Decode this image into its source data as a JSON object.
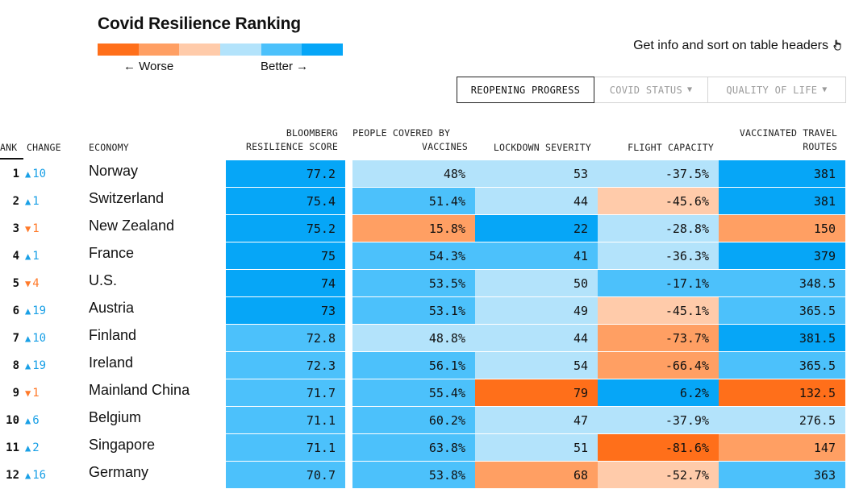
{
  "title": "Covid Resilience Ranking",
  "legend": {
    "worse": "← Worse",
    "better": "Better →",
    "scale_colors": [
      "#ff6f1a",
      "#ff9f63",
      "#ffcbaa",
      "#b3e3fb",
      "#4cc1fb",
      "#06a6f7"
    ]
  },
  "hint": {
    "text": "Get info and sort on table headers",
    "icon": "pointer-hand-icon"
  },
  "tabs": [
    {
      "label": "REOPENING PROGRESS",
      "active": true
    },
    {
      "label": "COVID STATUS",
      "active": false
    },
    {
      "label": "QUALITY OF LIFE",
      "active": false
    }
  ],
  "columns": {
    "rank": "ANK",
    "change": "CHANGE",
    "economy": "ECONOMY",
    "score_line1": "BLOOMBERG",
    "score_line2": "RESILIENCE SCORE",
    "vacc_line1": "PEOPLE COVERED BY",
    "vacc_line2": "VACCINES",
    "lockdown": "LOCKDOWN SEVERITY",
    "flight": "FLIGHT CAPACITY",
    "routes_line1": "VACCINATED TRAVEL",
    "routes_line2": "ROUTES"
  },
  "colors": {
    "dark_blue": "#06a6f7",
    "mid_blue": "#4cc1fb",
    "light_blue": "#b3e3fb",
    "light_orange": "#ffcbaa",
    "mid_orange": "#ff9f63",
    "dark_orange": "#ff6f1a",
    "up": "#1aa0e6",
    "down": "#ff7a2a"
  },
  "rows": [
    {
      "rank": "1",
      "dir": "up",
      "change": "10",
      "economy": "Norway",
      "score": "77.2",
      "score_c": "dark_blue",
      "vacc": "48%",
      "vacc_c": "light_blue",
      "lock": "53",
      "lock_c": "light_blue",
      "flight": "-37.5%",
      "flight_c": "light_blue",
      "routes": "381",
      "routes_c": "dark_blue"
    },
    {
      "rank": "2",
      "dir": "up",
      "change": "1",
      "economy": "Switzerland",
      "score": "75.4",
      "score_c": "dark_blue",
      "vacc": "51.4%",
      "vacc_c": "mid_blue",
      "lock": "44",
      "lock_c": "light_blue",
      "flight": "-45.6%",
      "flight_c": "light_orange",
      "routes": "381",
      "routes_c": "dark_blue"
    },
    {
      "rank": "3",
      "dir": "down",
      "change": "1",
      "economy": "New Zealand",
      "score": "75.2",
      "score_c": "dark_blue",
      "vacc": "15.8%",
      "vacc_c": "mid_orange",
      "lock": "22",
      "lock_c": "dark_blue",
      "flight": "-28.8%",
      "flight_c": "light_blue",
      "routes": "150",
      "routes_c": "mid_orange"
    },
    {
      "rank": "4",
      "dir": "up",
      "change": "1",
      "economy": "France",
      "score": "75",
      "score_c": "dark_blue",
      "vacc": "54.3%",
      "vacc_c": "mid_blue",
      "lock": "41",
      "lock_c": "mid_blue",
      "flight": "-36.3%",
      "flight_c": "light_blue",
      "routes": "379",
      "routes_c": "dark_blue"
    },
    {
      "rank": "5",
      "dir": "down",
      "change": "4",
      "economy": "U.S.",
      "score": "74",
      "score_c": "dark_blue",
      "vacc": "53.5%",
      "vacc_c": "mid_blue",
      "lock": "50",
      "lock_c": "light_blue",
      "flight": "-17.1%",
      "flight_c": "mid_blue",
      "routes": "348.5",
      "routes_c": "mid_blue"
    },
    {
      "rank": "6",
      "dir": "up",
      "change": "19",
      "economy": "Austria",
      "score": "73",
      "score_c": "dark_blue",
      "vacc": "53.1%",
      "vacc_c": "mid_blue",
      "lock": "49",
      "lock_c": "light_blue",
      "flight": "-45.1%",
      "flight_c": "light_orange",
      "routes": "365.5",
      "routes_c": "mid_blue"
    },
    {
      "rank": "7",
      "dir": "up",
      "change": "10",
      "economy": "Finland",
      "score": "72.8",
      "score_c": "mid_blue",
      "vacc": "48.8%",
      "vacc_c": "light_blue",
      "lock": "44",
      "lock_c": "light_blue",
      "flight": "-73.7%",
      "flight_c": "mid_orange",
      "routes": "381.5",
      "routes_c": "dark_blue"
    },
    {
      "rank": "8",
      "dir": "up",
      "change": "19",
      "economy": "Ireland",
      "score": "72.3",
      "score_c": "mid_blue",
      "vacc": "56.1%",
      "vacc_c": "mid_blue",
      "lock": "54",
      "lock_c": "light_blue",
      "flight": "-66.4%",
      "flight_c": "mid_orange",
      "routes": "365.5",
      "routes_c": "mid_blue"
    },
    {
      "rank": "9",
      "dir": "down",
      "change": "1",
      "economy": "Mainland China",
      "score": "71.7",
      "score_c": "mid_blue",
      "vacc": "55.4%",
      "vacc_c": "mid_blue",
      "lock": "79",
      "lock_c": "dark_orange",
      "flight": "6.2%",
      "flight_c": "dark_blue",
      "routes": "132.5",
      "routes_c": "dark_orange"
    },
    {
      "rank": "10",
      "dir": "up",
      "change": "6",
      "economy": "Belgium",
      "score": "71.1",
      "score_c": "mid_blue",
      "vacc": "60.2%",
      "vacc_c": "mid_blue",
      "lock": "47",
      "lock_c": "light_blue",
      "flight": "-37.9%",
      "flight_c": "light_blue",
      "routes": "276.5",
      "routes_c": "light_blue"
    },
    {
      "rank": "11",
      "dir": "up",
      "change": "2",
      "economy": "Singapore",
      "score": "71.1",
      "score_c": "mid_blue",
      "vacc": "63.8%",
      "vacc_c": "mid_blue",
      "lock": "51",
      "lock_c": "light_blue",
      "flight": "-81.6%",
      "flight_c": "dark_orange",
      "routes": "147",
      "routes_c": "mid_orange"
    },
    {
      "rank": "12",
      "dir": "up",
      "change": "16",
      "economy": "Germany",
      "score": "70.7",
      "score_c": "mid_blue",
      "vacc": "53.8%",
      "vacc_c": "mid_blue",
      "lock": "68",
      "lock_c": "mid_orange",
      "flight": "-52.7%",
      "flight_c": "light_orange",
      "routes": "363",
      "routes_c": "mid_blue"
    }
  ]
}
